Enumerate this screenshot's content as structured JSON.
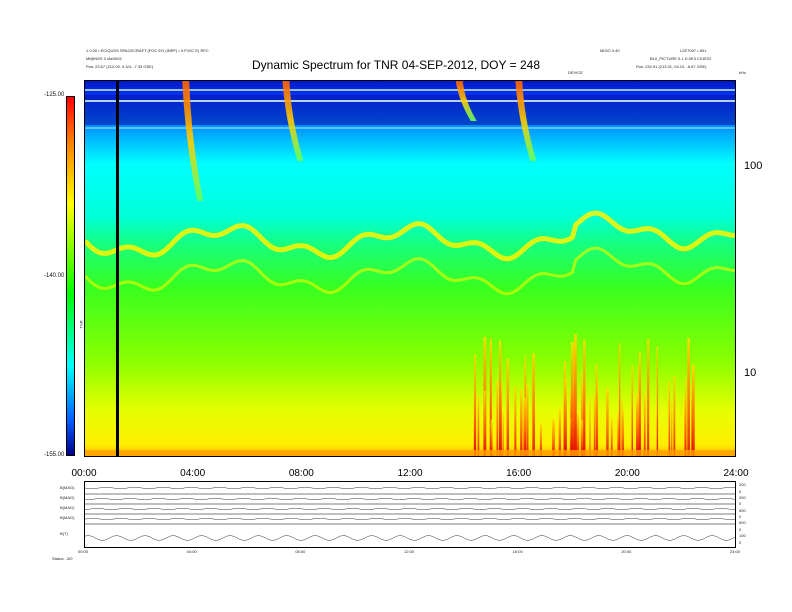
{
  "header": {
    "left_line1": "1 0.00 • ECIQUSS SPACECRAFT (FOC EO (INRF) • 0.P10C E) RFC",
    "left_line2": "Mi@NSS 3 •8e0002",
    "left_line3": "Pos: 23.67 (212.00, 0.3/4, -7.33 GSE)",
    "right_line1": "L2E7007 • 801",
    "right_line2": "MIGO 0.40",
    "right_line3": "B10_PICTURE 0.1 D.0E3 C01E22",
    "right_line4": "Pos: 232.91 (213.01, 04.10, -6.67 GSE)",
    "mid_tag": "DEVICE"
  },
  "chart_data": {
    "type": "heatmap",
    "title": "Dynamic Spectrum for TNR 04-SEP-2012, DOY = 248",
    "colorbar": {
      "tick_labels": [
        "-125.00",
        "-140.00",
        "-155.00"
      ],
      "label": "TNR",
      "range": [
        -155,
        -125
      ],
      "colors": [
        "#00008a",
        "#0060ff",
        "#00ffff",
        "#00ff00",
        "#ffff00",
        "#ff7a00",
        "#ff0000"
      ]
    },
    "x_axis": {
      "tick_labels": [
        "00:00",
        "04:00",
        "08:00",
        "12:00",
        "16:00",
        "20:00",
        "24:00"
      ],
      "range_hours": [
        0,
        24
      ]
    },
    "y_axis": {
      "scale": "log",
      "tick_labels": [
        "100",
        "10"
      ],
      "top_label": "kHz"
    },
    "events_hours": [
      3.7,
      7.4,
      13.8,
      16.0
    ],
    "marker_line_hour": 1.2,
    "low_freq_bursts_hours_range": [
      14.3,
      22.5
    ],
    "grid": false,
    "legend": "none"
  },
  "bottom_panel": {
    "row_labels": [
      "B(MAG)",
      "B(MAG)",
      "B(MAG)",
      "B(MAG)",
      "B(T)"
    ],
    "right_labels": [
      "200",
      "0",
      "200",
      "0",
      "500",
      "0",
      "500",
      "0",
      "100",
      "0"
    ],
    "x_tick_labels": [
      "00:00",
      "04:00",
      "08:00",
      "12:00",
      "16:00",
      "20:00",
      "24:00"
    ],
    "footer": "Status: -3/0"
  }
}
